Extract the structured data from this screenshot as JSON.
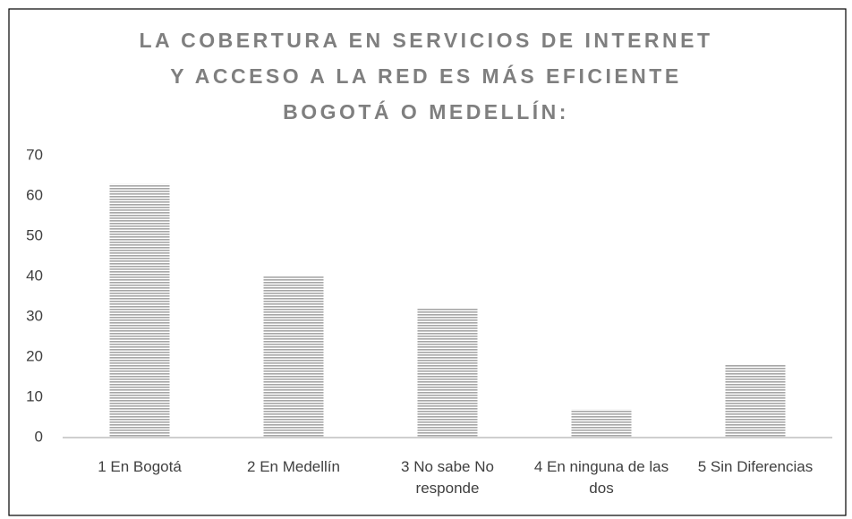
{
  "chart_data": {
    "type": "bar",
    "title": [
      "LA COBERTURA EN SERVICIOS DE INTERNET",
      "Y ACCESO A LA RED ES MÁS EFICIENTE",
      "BOGOTÁ O MEDELLÍN:"
    ],
    "categories": [
      "1 En Bogotá",
      "2 En Medellín",
      "3 No sabe No responde",
      "4 En ninguna de las dos",
      "5 Sin Diferencias"
    ],
    "values": [
      63,
      40,
      32,
      7,
      18
    ],
    "color": "#a6a6a6",
    "ylim": [
      0,
      70
    ],
    "yticks": [
      0,
      10,
      20,
      30,
      40,
      50,
      60,
      70
    ],
    "grid": false
  }
}
